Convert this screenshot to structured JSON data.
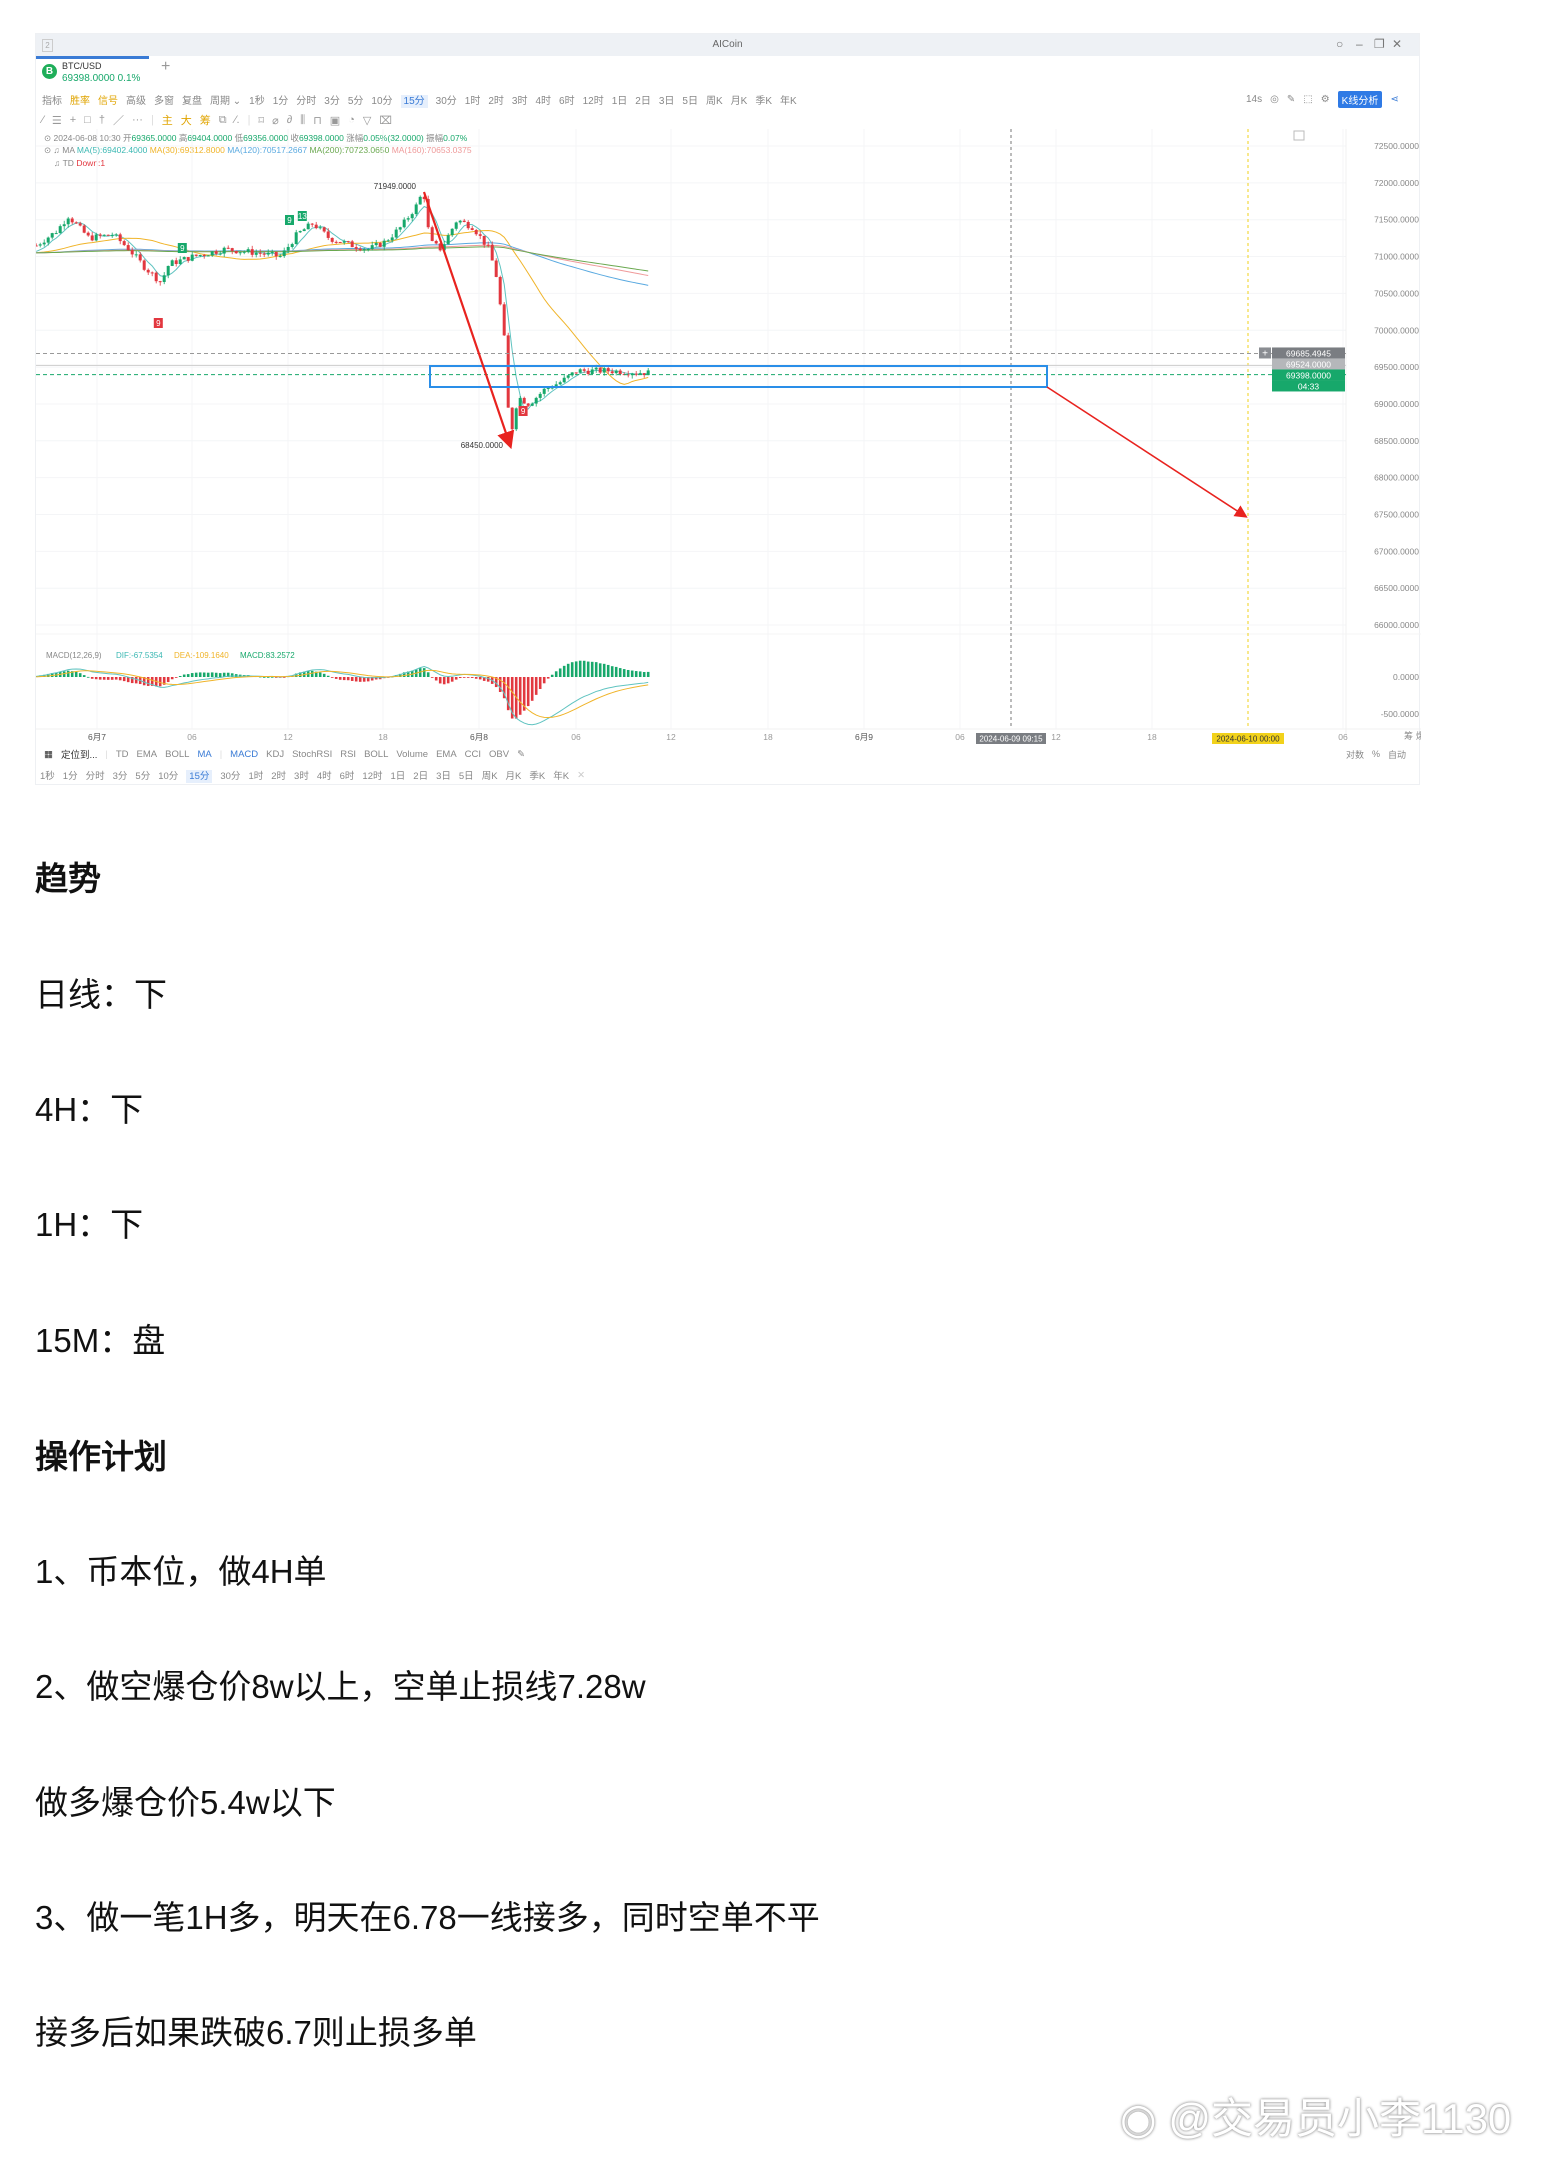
{
  "window": {
    "app_title": "AICoin",
    "tab_symbol": "BTC/USD",
    "tab_price": "69398.0000 0.1%",
    "add_tab": "+"
  },
  "toolbar": {
    "left": [
      "指标",
      "胜率",
      "信号",
      "高级",
      "多窗",
      "复盘",
      "周期 ⌄"
    ],
    "periods": [
      "1秒",
      "1分",
      "分时",
      "3分",
      "5分",
      "10分",
      "15分",
      "30分",
      "1时",
      "2时",
      "3时",
      "4时",
      "6时",
      "12时",
      "1日",
      "2日",
      "3日",
      "5日",
      "周K",
      "月K",
      "季K",
      "年K"
    ],
    "selected_period": "15分",
    "refresh": "14s",
    "analysis_button": "K线分析"
  },
  "drawing_tools": {
    "labels": [
      "主",
      "大",
      "筹"
    ]
  },
  "info": {
    "date": "2024-06-08 10:30",
    "open_label": "开",
    "open": "69365.0000",
    "high_label": "高",
    "high": "69404.0000",
    "low_label": "低",
    "low": "69356.0000",
    "close_label": "收",
    "close": "69398.0000",
    "change_label": "涨幅",
    "change": "0.05%(32.0000)",
    "amp_label": "振幅",
    "amp": "0.07%",
    "ma_label": "MA",
    "ma": [
      "MA(5):69402.4000",
      "MA(30):69312.8000",
      "MA(120):70517.2667",
      "MA(200):70723.0650",
      "MA(160):70653.0375"
    ],
    "td_label": "TD",
    "td_value": "Down:1"
  },
  "chart": {
    "price_ticks": [
      "72500.0000",
      "72000.0000",
      "71500.0000",
      "71000.0000",
      "70500.0000",
      "70000.0000",
      "69500.0000",
      "69000.0000",
      "68500.0000",
      "68000.0000",
      "67500.0000",
      "67000.0000",
      "66500.0000",
      "66000.0000"
    ],
    "price_tags": {
      "crosshair": "69685.4945",
      "line": "69524.0000",
      "last": "69398.0000",
      "countdown": "04:33"
    },
    "high_label": "71949.0000",
    "low_label": "68450.0000",
    "td_markers": [
      "9",
      "9",
      "9",
      "13",
      "9"
    ],
    "time_ticks": [
      "6月7",
      "06",
      "12",
      "18",
      "6月8",
      "06",
      "12",
      "18",
      "6月9",
      "06",
      "12",
      "18",
      "06"
    ],
    "crosshair_time": "2024-06-09 09:15",
    "target_time": "2024-06-10 00:00",
    "colors": {
      "up": "#17a86b",
      "down": "#e2373f",
      "ma5": "#5fc3c0",
      "ma30": "#f0b429",
      "ma120": "#59a9e0",
      "ma200": "#6aa84f",
      "ma160": "#ef9a9a",
      "box": "#2a8ee8",
      "arrow": "#e8231f",
      "target": "#f2d21b"
    }
  },
  "macd": {
    "label": "MACD(12,26,9)",
    "dif": "DIF:-67.5354",
    "dea": "DEA:-109.1640",
    "macd": "MACD:83.2572",
    "ticks": [
      "0.0000",
      "-500.0000"
    ]
  },
  "bottom": {
    "locate": "定位到...",
    "main_indicators": [
      "TD",
      "EMA",
      "BOLL",
      "MA"
    ],
    "sub_indicators": [
      "MACD",
      "KDJ",
      "StochRSI",
      "RSI",
      "BOLL",
      "Volume",
      "EMA",
      "CCI",
      "OBV"
    ],
    "right": [
      "对数",
      "%",
      "自动"
    ],
    "axis_right": [
      "筹",
      "爆"
    ]
  },
  "article": {
    "trend_heading": "趋势",
    "trend": [
      "日线：下",
      "4H：下",
      "1H：下",
      "15M：盘"
    ],
    "plan_heading": "操作计划",
    "plan": [
      "1、币本位，做4H单",
      "2、做空爆仓价8w以上，空单止损线7.28w",
      "做多爆仓价5.4w以下",
      "3、做一笔1H多，明天在6.78一线接多，同时空单不平",
      "接多后如果跌破6.7则止损多单"
    ]
  },
  "watermark": "@交易员小李1130"
}
